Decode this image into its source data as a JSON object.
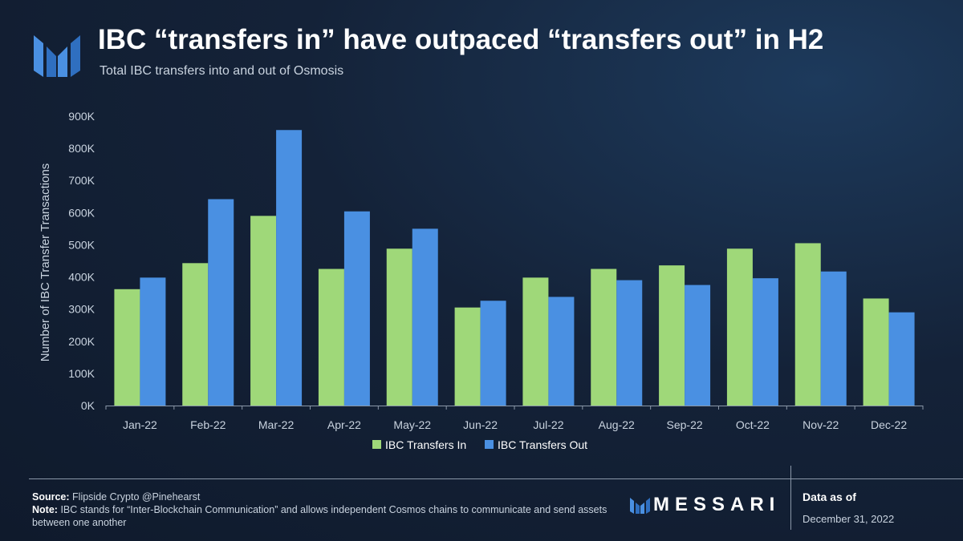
{
  "header": {
    "title": "IBC “transfers in” have outpaced “transfers out” in H2",
    "subtitle": "Total IBC transfers into and out of Osmosis"
  },
  "colors": {
    "series_in": "#9fd879",
    "series_out": "#4a90e2",
    "logo": "#4a90e2"
  },
  "chart_data": {
    "type": "bar",
    "title": "IBC “transfers in” have outpaced “transfers out” in H2",
    "subtitle": "Total IBC transfers into and out of Osmosis",
    "xlabel": "",
    "ylabel": "Number of IBC Transfer Transactions",
    "ylim": [
      0,
      900000
    ],
    "yticks": [
      0,
      100000,
      200000,
      300000,
      400000,
      500000,
      600000,
      700000,
      800000,
      900000
    ],
    "ytick_labels": [
      "0K",
      "100K",
      "200K",
      "300K",
      "400K",
      "500K",
      "600K",
      "700K",
      "800K",
      "900K"
    ],
    "categories": [
      "Jan-22",
      "Feb-22",
      "Mar-22",
      "Apr-22",
      "May-22",
      "Jun-22",
      "Jul-22",
      "Aug-22",
      "Sep-22",
      "Oct-22",
      "Nov-22",
      "Dec-22"
    ],
    "series": [
      {
        "name": "IBC Transfers In",
        "values": [
          362000,
          443000,
          590000,
          425000,
          488000,
          305000,
          398000,
          425000,
          436000,
          488000,
          505000,
          333000
        ]
      },
      {
        "name": "IBC Transfers Out",
        "values": [
          398000,
          642000,
          857000,
          604000,
          550000,
          326000,
          338000,
          390000,
          375000,
          396000,
          417000,
          290000
        ]
      }
    ],
    "grid": false,
    "legend_position": "bottom-center"
  },
  "footer": {
    "source_label": "Source:",
    "source_text": "Flipside Crypto @Pinehearst",
    "note_label": "Note:",
    "note_text": "IBC stands for “Inter-Blockchain Communication” and allows independent Cosmos chains to communicate and send assets between one another",
    "brand": "MESSARI",
    "asof_label": "Data as of",
    "asof_date": "December 31, 2022"
  },
  "icons": {
    "logo": "messari-logo-icon",
    "brand_logo": "messari-small-logo-icon"
  }
}
